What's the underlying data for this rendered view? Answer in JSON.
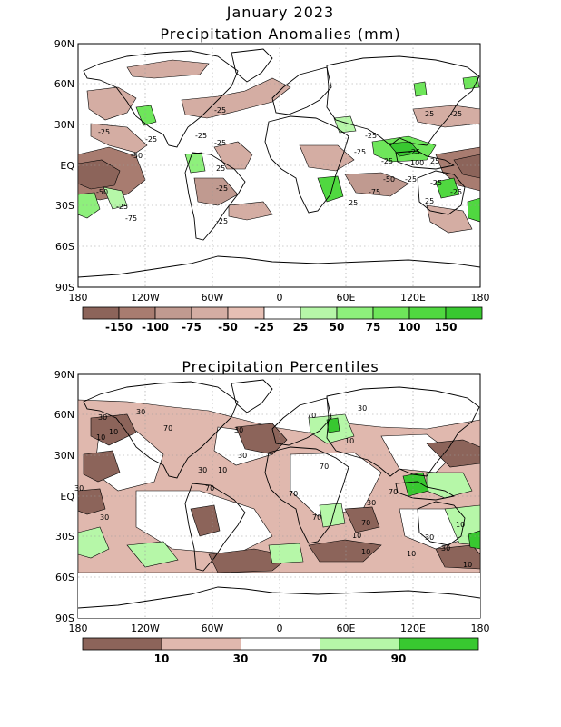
{
  "month_title": "January 2023",
  "map1": {
    "title": "Precipitation Anomalies (mm)",
    "lat_labels": [
      "90N",
      "60N",
      "30N",
      "EQ",
      "30S",
      "60S",
      "90S"
    ],
    "lon_labels": [
      "180",
      "120W",
      "60W",
      "0",
      "60E",
      "120E",
      "180"
    ],
    "colorbar": {
      "colors": [
        "#8c645a",
        "#a87c70",
        "#c09a90",
        "#d4ada3",
        "#e6bfb4",
        "#ffffff",
        "#b6f7a8",
        "#8ef07c",
        "#6ee65a",
        "#50d840",
        "#38c830"
      ],
      "labels": [
        "-150",
        "-100",
        "-75",
        "-50",
        "-25",
        "25",
        "50",
        "75",
        "100",
        "150"
      ]
    },
    "contour_labels": [
      "-25",
      "-25",
      "-25",
      "-50",
      "-50",
      "-25",
      "-25",
      "25",
      "-25",
      "-25",
      "-25",
      "-25",
      "-25",
      "25",
      "-25",
      "-25",
      "25",
      "100",
      "-25",
      "-50",
      "-25",
      "-75",
      "-25",
      "25",
      "25",
      "-75",
      "-25"
    ]
  },
  "map2": {
    "title": "Precipitation Percentiles",
    "lat_labels": [
      "90N",
      "60N",
      "30N",
      "EQ",
      "30S",
      "60S",
      "90S"
    ],
    "lon_labels": [
      "180",
      "120W",
      "60W",
      "0",
      "60E",
      "120E",
      "180"
    ],
    "colorbar": {
      "colors": [
        "#8c645a",
        "#e0b8ae",
        "#ffffff",
        "#b6f7a8",
        "#38c830"
      ],
      "labels": [
        "10",
        "30",
        "70",
        "90"
      ]
    },
    "contour_labels": [
      "30",
      "10",
      "30",
      "70",
      "30",
      "30",
      "10",
      "10",
      "30",
      "70",
      "70",
      "30",
      "10",
      "70",
      "30",
      "30",
      "70",
      "70",
      "30",
      "70",
      "10",
      "10",
      "30",
      "10",
      "30",
      "10",
      "70",
      "10"
    ]
  }
}
